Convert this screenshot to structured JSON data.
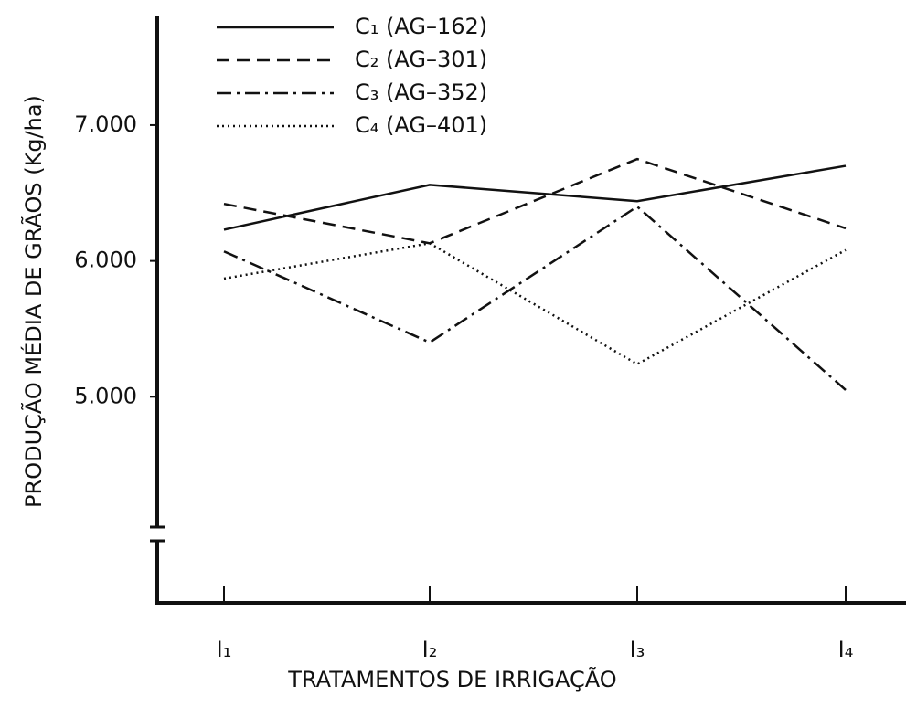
{
  "chart_data": {
    "type": "line",
    "xlabel": "TRATAMENTOS DE IRRIGAÇÃO",
    "ylabel": "PRODUÇÃO MÉDIA DE GRÃOS (Kg/ha)",
    "categories": [
      "I₁",
      "I₂",
      "I₃",
      "I₄"
    ],
    "series": [
      {
        "name": "C₁ (AG–162)",
        "color": "#111111",
        "dash": "solid",
        "values": [
          6230,
          6560,
          6440,
          6700
        ]
      },
      {
        "name": "C₂ (AG–301)",
        "color": "#111111",
        "dash": "dashed",
        "values": [
          6420,
          6130,
          6750,
          6240
        ]
      },
      {
        "name": "C₃ (AG–352)",
        "color": "#111111",
        "dash": "dashdot",
        "values": [
          6070,
          5400,
          6400,
          5050
        ]
      },
      {
        "name": "C₄ (AG–401)",
        "color": "#111111",
        "dash": "dotted",
        "values": [
          5870,
          6130,
          5240,
          6080
        ]
      }
    ],
    "ylim": [
      4000,
      7800
    ],
    "yticks": [
      {
        "value": 5000,
        "label": "5.000"
      },
      {
        "value": 6000,
        "label": "6.000"
      },
      {
        "value": 7000,
        "label": "7.000"
      }
    ],
    "legend": "upper left"
  }
}
